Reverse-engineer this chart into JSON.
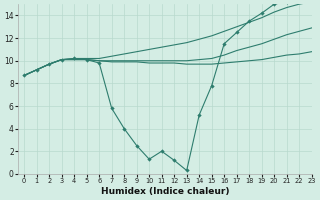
{
  "x": [
    0,
    1,
    2,
    3,
    4,
    5,
    6,
    7,
    8,
    9,
    10,
    11,
    12,
    13,
    14,
    15,
    16,
    17,
    18,
    19,
    20,
    21,
    22,
    23
  ],
  "line_main": [
    8.7,
    9.2,
    9.7,
    10.1,
    10.2,
    10.1,
    9.8,
    5.8,
    4.0,
    2.5,
    1.3,
    2.0,
    1.2,
    0.3,
    5.2,
    7.8,
    11.5,
    12.5,
    13.5,
    14.2,
    15.0,
    15.2,
    null,
    null
  ],
  "line_upper": [
    8.7,
    9.2,
    9.7,
    10.1,
    10.2,
    10.2,
    10.2,
    10.4,
    10.6,
    10.8,
    11.0,
    11.2,
    11.4,
    11.6,
    11.9,
    12.2,
    12.6,
    13.0,
    13.4,
    13.8,
    14.3,
    14.7,
    15.0,
    15.2
  ],
  "line_mid": [
    8.7,
    9.2,
    9.7,
    10.1,
    10.1,
    10.1,
    10.0,
    10.0,
    10.0,
    10.0,
    10.0,
    10.0,
    10.0,
    10.0,
    10.1,
    10.2,
    10.5,
    10.9,
    11.2,
    11.5,
    11.9,
    12.3,
    12.6,
    12.9
  ],
  "line_lower": [
    8.7,
    9.2,
    9.7,
    10.1,
    10.1,
    10.1,
    10.0,
    9.9,
    9.9,
    9.9,
    9.8,
    9.8,
    9.8,
    9.7,
    9.7,
    9.7,
    9.8,
    9.9,
    10.0,
    10.1,
    10.3,
    10.5,
    10.6,
    10.8
  ],
  "color": "#2e7d6e",
  "bg_color": "#d4ede4",
  "grid_color": "#b8d9ce",
  "xlabel": "Humidex (Indice chaleur)",
  "xlim": [
    -0.5,
    23
  ],
  "ylim": [
    0,
    15
  ],
  "xticks": [
    0,
    1,
    2,
    3,
    4,
    5,
    6,
    7,
    8,
    9,
    10,
    11,
    12,
    13,
    14,
    15,
    16,
    17,
    18,
    19,
    20,
    21,
    22,
    23
  ],
  "yticks": [
    0,
    2,
    4,
    6,
    8,
    10,
    12,
    14
  ]
}
